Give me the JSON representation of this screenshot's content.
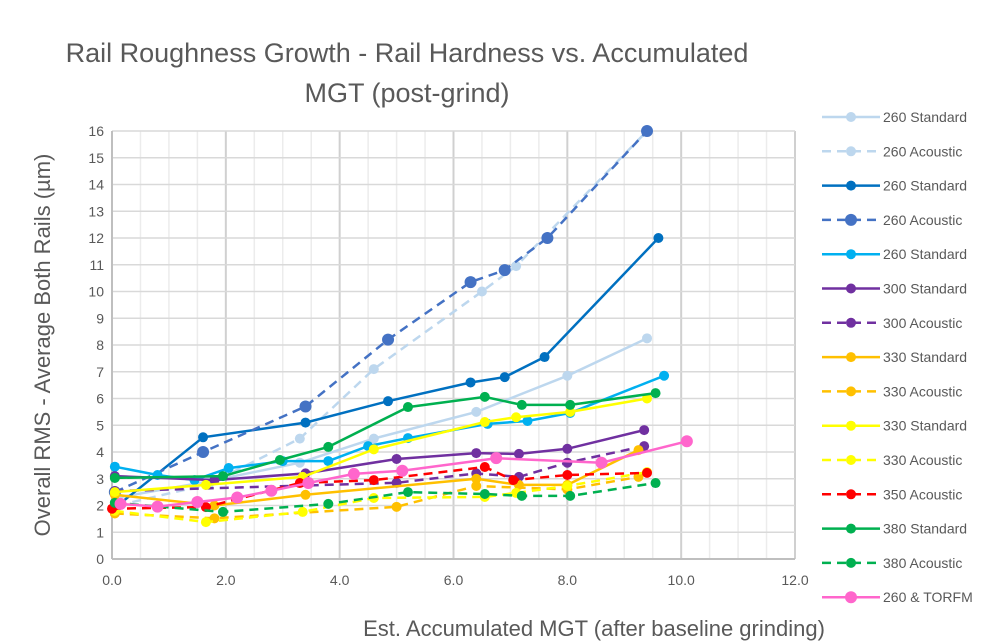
{
  "chart_data": {
    "type": "line",
    "title_lines": [
      "Rail Roughness Growth - Rail Hardness vs. Accumulated",
      "MGT (post-grind)"
    ],
    "xlabel": "Est. Accumulated MGT (after baseline grinding)",
    "ylabel": "Overall RMS - Average Both Rails (µm)",
    "xlim": [
      0,
      12
    ],
    "ylim": [
      0,
      16
    ],
    "xticks": [
      "0.0",
      "2.0",
      "4.0",
      "6.0",
      "8.0",
      "10.0",
      "12.0"
    ],
    "yticks": [
      "0",
      "1",
      "2",
      "3",
      "4",
      "5",
      "6",
      "7",
      "8",
      "9",
      "10",
      "11",
      "12",
      "13",
      "14",
      "15",
      "16"
    ],
    "grid": true,
    "legend": "right",
    "series": [
      {
        "name": "260 Standard",
        "color": "#BDD7EE",
        "dash": false,
        "points": [
          [
            0.1,
            2.3
          ],
          [
            1.7,
            2.9
          ],
          [
            3.3,
            3.6
          ],
          [
            4.6,
            4.5
          ],
          [
            6.4,
            5.5
          ],
          [
            8.0,
            6.85
          ],
          [
            9.4,
            8.25
          ]
        ]
      },
      {
        "name": "260 Acoustic",
        "color": "#BDD7EE",
        "dash": true,
        "points": [
          [
            0.1,
            2.0
          ],
          [
            1.7,
            2.8
          ],
          [
            3.3,
            4.5
          ],
          [
            4.6,
            7.1
          ],
          [
            6.5,
            10.0
          ],
          [
            7.1,
            10.95
          ],
          [
            9.4,
            16.0
          ]
        ]
      },
      {
        "name": "260 Standard",
        "color": "#0070C0",
        "dash": false,
        "points": [
          [
            0.1,
            2.0
          ],
          [
            1.6,
            4.55
          ],
          [
            3.4,
            5.1
          ],
          [
            4.85,
            5.9
          ],
          [
            6.3,
            6.6
          ],
          [
            6.9,
            6.8
          ],
          [
            7.6,
            7.55
          ],
          [
            9.6,
            12.0
          ]
        ]
      },
      {
        "name": "260 Acoustic",
        "color": "#4472C4",
        "dash": true,
        "big": true,
        "points": [
          [
            0.05,
            2.5
          ],
          [
            1.6,
            4.0
          ],
          [
            3.4,
            5.7
          ],
          [
            4.85,
            8.2
          ],
          [
            6.3,
            10.35
          ],
          [
            6.9,
            10.8
          ],
          [
            7.65,
            12.0
          ],
          [
            9.4,
            16.0
          ]
        ]
      },
      {
        "name": "260 Standard",
        "color": "#00B0F0",
        "dash": false,
        "points": [
          [
            0.05,
            3.45
          ],
          [
            0.8,
            3.14
          ],
          [
            1.45,
            2.95
          ],
          [
            2.05,
            3.4
          ],
          [
            3.0,
            3.66
          ],
          [
            3.8,
            3.66
          ],
          [
            4.5,
            4.22
          ],
          [
            5.2,
            4.52
          ],
          [
            6.6,
            5.05
          ],
          [
            7.3,
            5.16
          ],
          [
            8.05,
            5.46
          ],
          [
            9.7,
            6.85
          ]
        ]
      },
      {
        "name": "300 Standard",
        "color": "#7030A0",
        "dash": false,
        "points": [
          [
            0.05,
            3.1
          ],
          [
            1.8,
            2.95
          ],
          [
            3.4,
            3.2
          ],
          [
            5.0,
            3.74
          ],
          [
            6.4,
            3.96
          ],
          [
            7.15,
            3.93
          ],
          [
            8.0,
            4.12
          ],
          [
            9.35,
            4.82
          ]
        ]
      },
      {
        "name": "300 Acoustic",
        "color": "#7030A0",
        "dash": true,
        "points": [
          [
            0.05,
            2.54
          ],
          [
            5.0,
            2.85
          ],
          [
            6.4,
            3.2
          ],
          [
            7.15,
            3.07
          ],
          [
            8.0,
            3.6
          ],
          [
            9.35,
            4.22
          ]
        ]
      },
      {
        "name": "330 Standard",
        "color": "#FFC000",
        "dash": false,
        "points": [
          [
            0.05,
            2.4
          ],
          [
            1.8,
            2.0
          ],
          [
            3.4,
            2.4
          ],
          [
            6.4,
            3.0
          ],
          [
            7.15,
            2.77
          ],
          [
            8.0,
            2.77
          ],
          [
            9.25,
            4.07
          ]
        ]
      },
      {
        "name": "330 Acoustic",
        "color": "#FFC000",
        "dash": true,
        "points": [
          [
            0.05,
            1.7
          ],
          [
            1.8,
            1.52
          ],
          [
            5.0,
            1.95
          ],
          [
            6.4,
            2.73
          ],
          [
            8.0,
            2.6
          ],
          [
            9.25,
            3.07
          ]
        ]
      },
      {
        "name": "330 Standard",
        "color": "#FFFF00",
        "dash": false,
        "points": [
          [
            0.05,
            2.5
          ],
          [
            1.65,
            2.77
          ],
          [
            3.35,
            3.07
          ],
          [
            4.6,
            4.1
          ],
          [
            6.55,
            5.12
          ],
          [
            7.1,
            5.3
          ],
          [
            8.05,
            5.5
          ],
          [
            9.4,
            6.0
          ]
        ]
      },
      {
        "name": "330 Acoustic",
        "color": "#FFFF00",
        "dash": true,
        "points": [
          [
            0.05,
            1.8
          ],
          [
            1.65,
            1.38
          ],
          [
            3.35,
            1.76
          ],
          [
            4.6,
            2.28
          ],
          [
            6.55,
            2.32
          ],
          [
            7.1,
            2.47
          ],
          [
            8.0,
            2.73
          ],
          [
            9.4,
            3.25
          ]
        ]
      },
      {
        "name": "350 Acoustic",
        "color": "#FF0000",
        "dash": true,
        "points": [
          [
            0.0,
            1.88
          ],
          [
            1.65,
            1.94
          ],
          [
            3.3,
            2.84
          ],
          [
            4.6,
            2.95
          ],
          [
            6.55,
            3.44
          ],
          [
            7.05,
            2.95
          ],
          [
            8.0,
            3.14
          ],
          [
            9.4,
            3.22
          ]
        ]
      },
      {
        "name": "380 Standard",
        "color": "#00B050",
        "dash": false,
        "points": [
          [
            0.05,
            3.03
          ],
          [
            1.95,
            3.1
          ],
          [
            2.95,
            3.7
          ],
          [
            3.8,
            4.19
          ],
          [
            5.2,
            5.68
          ],
          [
            6.55,
            6.06
          ],
          [
            7.2,
            5.76
          ],
          [
            8.05,
            5.76
          ],
          [
            9.55,
            6.2
          ]
        ]
      },
      {
        "name": "380 Acoustic",
        "color": "#00B050",
        "dash": true,
        "points": [
          [
            0.05,
            2.1
          ],
          [
            1.95,
            1.76
          ],
          [
            3.8,
            2.06
          ],
          [
            5.2,
            2.5
          ],
          [
            6.55,
            2.43
          ],
          [
            7.2,
            2.36
          ],
          [
            8.05,
            2.36
          ],
          [
            9.55,
            2.84
          ]
        ]
      },
      {
        "name": "260 & TORFM",
        "color": "#FF66CC",
        "dash": false,
        "big": true,
        "points": [
          [
            0.15,
            2.06
          ],
          [
            0.8,
            1.96
          ],
          [
            1.5,
            2.13
          ],
          [
            2.2,
            2.3
          ],
          [
            2.8,
            2.55
          ],
          [
            3.45,
            2.84
          ],
          [
            4.25,
            3.18
          ],
          [
            5.1,
            3.3
          ],
          [
            6.75,
            3.77
          ],
          [
            8.6,
            3.6
          ],
          [
            10.1,
            4.4
          ]
        ]
      }
    ]
  }
}
